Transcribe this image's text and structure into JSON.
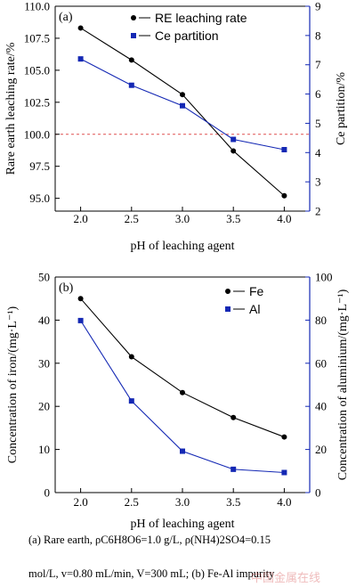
{
  "chart_data": [
    {
      "type": "line",
      "panel_label": "(a)",
      "x": [
        2.0,
        2.5,
        3.0,
        3.5,
        4.0
      ],
      "x_tick_labels": [
        "2.0",
        "2.5",
        "3.0",
        "3.5",
        "4.0"
      ],
      "xlabel": "pH of leaching agent",
      "xlim": [
        1.75,
        4.25
      ],
      "ylabel": "Rare earth leaching rate/%",
      "ylim": [
        94,
        110
      ],
      "y_ticks": [
        95.0,
        97.5,
        100.0,
        102.5,
        105.0,
        107.5,
        110.0
      ],
      "y_tick_labels": [
        "95.0",
        "97.5",
        "100.0",
        "102.5",
        "105.0",
        "107.5",
        "110.0"
      ],
      "y2label": "Ce partition/%",
      "y2lim": [
        2,
        9
      ],
      "y2_ticks": [
        2,
        3,
        4,
        5,
        6,
        7,
        8,
        9
      ],
      "y2_tick_labels": [
        "2",
        "3",
        "4",
        "5",
        "6",
        "7",
        "8",
        "9"
      ],
      "reference_line": {
        "axis": "y",
        "value": 100.0,
        "color": "#e05050",
        "style": "dashed"
      },
      "legend_position": "top-right",
      "series": [
        {
          "name": "RE leaching rate",
          "axis": "left",
          "marker": "circle",
          "color": "#000000",
          "values": [
            108.3,
            105.8,
            103.1,
            98.7,
            95.2
          ]
        },
        {
          "name": "Ce partition",
          "axis": "right",
          "marker": "square",
          "color": "#1428b4",
          "values": [
            7.2,
            6.3,
            5.6,
            4.45,
            4.1
          ]
        }
      ]
    },
    {
      "type": "line",
      "panel_label": "(b)",
      "x": [
        2.0,
        2.5,
        3.0,
        3.5,
        4.0
      ],
      "x_tick_labels": [
        "2.0",
        "2.5",
        "3.0",
        "3.5",
        "4.0"
      ],
      "xlabel": "pH of leaching agent",
      "xlim": [
        1.75,
        4.25
      ],
      "ylabel": "Concentration of iron/(mg·L⁻¹)",
      "ylim": [
        0,
        50
      ],
      "y_ticks": [
        0,
        10,
        20,
        30,
        40,
        50
      ],
      "y_tick_labels": [
        "0",
        "10",
        "20",
        "30",
        "40",
        "50"
      ],
      "y2label": "Concentration of aluminium/(mg·L⁻¹)",
      "y2lim": [
        0,
        100
      ],
      "y2_ticks": [
        0,
        20,
        40,
        60,
        80,
        100
      ],
      "y2_tick_labels": [
        "0",
        "20",
        "40",
        "60",
        "80",
        "100"
      ],
      "legend_position": "top-right",
      "series": [
        {
          "name": "Fe",
          "axis": "left",
          "marker": "circle",
          "color": "#000000",
          "values": [
            45.0,
            31.5,
            23.2,
            17.4,
            12.9
          ]
        },
        {
          "name": "Al",
          "axis": "right",
          "marker": "square",
          "color": "#1428b4",
          "values": [
            79.8,
            42.5,
            19.2,
            10.8,
            9.3
          ]
        }
      ]
    }
  ],
  "caption": {
    "line1": "(a)  Rare  earth,  ρC6H8O6=1.0  g/L,  ρ(NH4)2SO4=0.15",
    "line2": "mol/L, v=0.80 mL/min, V=300 mL; (b) Fe-Al impurity"
  },
  "watermark": "中国金属在线"
}
